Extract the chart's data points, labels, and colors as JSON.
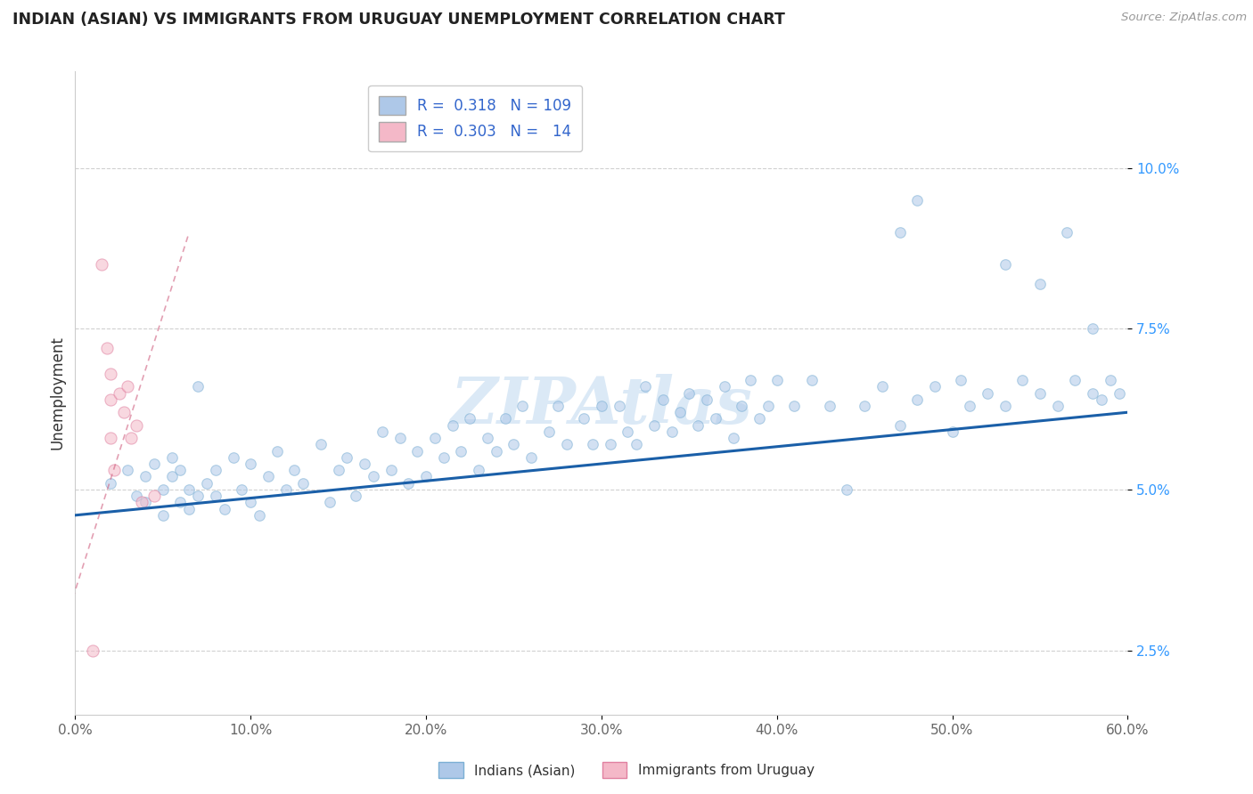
{
  "title": "INDIAN (ASIAN) VS IMMIGRANTS FROM URUGUAY UNEMPLOYMENT CORRELATION CHART",
  "source": "Source: ZipAtlas.com",
  "ylabel": "Unemployment",
  "xlim": [
    0.0,
    0.6
  ],
  "ylim": [
    0.015,
    0.115
  ],
  "xtick_labels": [
    "0.0%",
    "10.0%",
    "20.0%",
    "30.0%",
    "40.0%",
    "50.0%",
    "60.0%"
  ],
  "xtick_vals": [
    0.0,
    0.1,
    0.2,
    0.3,
    0.4,
    0.5,
    0.6
  ],
  "ytick_labels": [
    "2.5%",
    "5.0%",
    "7.5%",
    "10.0%"
  ],
  "ytick_vals": [
    0.025,
    0.05,
    0.075,
    0.1
  ],
  "legend_labels_bottom": [
    "Indians (Asian)",
    "Immigrants from Uruguay"
  ],
  "legend_R_indian": "0.318",
  "legend_N_indian": "109",
  "legend_R_uruguay": "0.303",
  "legend_N_uruguay": "14",
  "watermark": "ZIPAtlas",
  "blue_scatter_x": [
    0.02,
    0.03,
    0.035,
    0.04,
    0.04,
    0.045,
    0.05,
    0.05,
    0.055,
    0.055,
    0.06,
    0.06,
    0.065,
    0.065,
    0.07,
    0.07,
    0.075,
    0.08,
    0.08,
    0.085,
    0.09,
    0.095,
    0.1,
    0.1,
    0.105,
    0.11,
    0.115,
    0.12,
    0.125,
    0.13,
    0.14,
    0.145,
    0.15,
    0.155,
    0.16,
    0.165,
    0.17,
    0.175,
    0.18,
    0.185,
    0.19,
    0.195,
    0.2,
    0.205,
    0.21,
    0.215,
    0.22,
    0.225,
    0.23,
    0.235,
    0.24,
    0.245,
    0.25,
    0.255,
    0.26,
    0.27,
    0.275,
    0.28,
    0.29,
    0.295,
    0.3,
    0.305,
    0.31,
    0.315,
    0.32,
    0.325,
    0.33,
    0.335,
    0.34,
    0.345,
    0.35,
    0.355,
    0.36,
    0.365,
    0.37,
    0.375,
    0.38,
    0.385,
    0.39,
    0.395,
    0.4,
    0.41,
    0.42,
    0.43,
    0.44,
    0.45,
    0.46,
    0.47,
    0.48,
    0.49,
    0.5,
    0.505,
    0.51,
    0.52,
    0.53,
    0.54,
    0.55,
    0.56,
    0.57,
    0.58,
    0.585,
    0.59,
    0.595,
    0.47,
    0.48,
    0.53,
    0.55,
    0.565,
    0.58
  ],
  "blue_scatter_y": [
    0.051,
    0.053,
    0.049,
    0.052,
    0.048,
    0.054,
    0.05,
    0.046,
    0.052,
    0.055,
    0.048,
    0.053,
    0.05,
    0.047,
    0.066,
    0.049,
    0.051,
    0.053,
    0.049,
    0.047,
    0.055,
    0.05,
    0.054,
    0.048,
    0.046,
    0.052,
    0.056,
    0.05,
    0.053,
    0.051,
    0.057,
    0.048,
    0.053,
    0.055,
    0.049,
    0.054,
    0.052,
    0.059,
    0.053,
    0.058,
    0.051,
    0.056,
    0.052,
    0.058,
    0.055,
    0.06,
    0.056,
    0.061,
    0.053,
    0.058,
    0.056,
    0.061,
    0.057,
    0.063,
    0.055,
    0.059,
    0.063,
    0.057,
    0.061,
    0.057,
    0.063,
    0.057,
    0.063,
    0.059,
    0.057,
    0.066,
    0.06,
    0.064,
    0.059,
    0.062,
    0.065,
    0.06,
    0.064,
    0.061,
    0.066,
    0.058,
    0.063,
    0.067,
    0.061,
    0.063,
    0.067,
    0.063,
    0.067,
    0.063,
    0.05,
    0.063,
    0.066,
    0.06,
    0.064,
    0.066,
    0.059,
    0.067,
    0.063,
    0.065,
    0.063,
    0.067,
    0.065,
    0.063,
    0.067,
    0.065,
    0.064,
    0.067,
    0.065,
    0.09,
    0.095,
    0.085,
    0.082,
    0.09,
    0.075
  ],
  "pink_scatter_x": [
    0.01,
    0.015,
    0.018,
    0.02,
    0.02,
    0.02,
    0.022,
    0.025,
    0.028,
    0.03,
    0.032,
    0.035,
    0.038,
    0.045
  ],
  "pink_scatter_y": [
    0.025,
    0.085,
    0.072,
    0.068,
    0.064,
    0.058,
    0.053,
    0.065,
    0.062,
    0.066,
    0.058,
    0.06,
    0.048,
    0.049
  ],
  "blue_line_x": [
    0.0,
    0.6
  ],
  "blue_line_y": [
    0.046,
    0.062
  ],
  "pink_line_x": [
    -0.005,
    0.065
  ],
  "pink_line_y": [
    0.03,
    0.09
  ],
  "scatter_alpha": 0.55,
  "scatter_size_blue": 70,
  "scatter_size_pink": 90,
  "blue_color": "#aec8e8",
  "blue_edge_color": "#7bafd4",
  "pink_color": "#f4b8c8",
  "pink_edge_color": "#e080a0",
  "blue_line_color": "#1a5fa8",
  "pink_line_color": "#d06080",
  "grid_color": "#cccccc",
  "background_color": "#ffffff",
  "title_color": "#222222",
  "axis_label_color": "#333333",
  "ytick_color": "#3399ff",
  "xtick_color": "#666666",
  "source_color": "#999999",
  "watermark_color": "#b8d4ee",
  "watermark_alpha": 0.5
}
